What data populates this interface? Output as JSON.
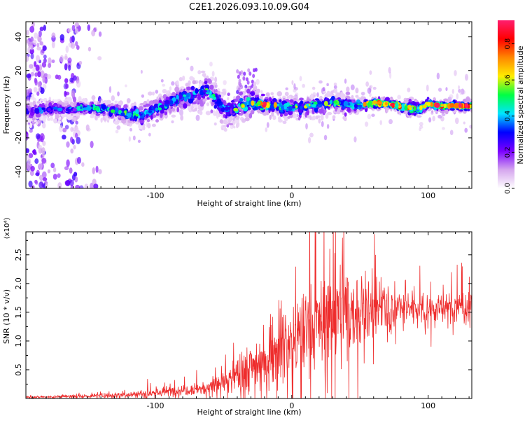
{
  "title": "C2E1.2026.093.10.09.G04",
  "chart_data": [
    {
      "type": "heatmap",
      "title": "C2E1.2026.093.10.09.G04",
      "xlabel": "Height of straight line (km)",
      "ylabel": "Frequency (Hz)",
      "xlim": [
        -195,
        132
      ],
      "ylim": [
        -50,
        49
      ],
      "xticks": [
        -100,
        0,
        100
      ],
      "xtick_labels": [
        "-100",
        "0",
        "100"
      ],
      "yticks": [
        -40,
        -20,
        0,
        20,
        40
      ],
      "ytick_labels": [
        "-40",
        "-20",
        "0",
        "20",
        "40"
      ],
      "colorbar": {
        "label": "Normalized spectral amplitude",
        "range": [
          0.0,
          0.93
        ],
        "ticks": [
          0.0,
          0.2,
          0.4,
          0.6,
          0.8
        ],
        "tick_labels": [
          "0.0",
          "0.2",
          "0.4",
          "0.6",
          "0.8"
        ],
        "colors": [
          "#ffffff",
          "#d5a6ee",
          "#7a00ff",
          "#0000ff",
          "#00e5ff",
          "#00ff44",
          "#ffee00",
          "#ff8800",
          "#ff0000",
          "#ff1e6e"
        ]
      },
      "ridge": {
        "x": [
          -190,
          -175,
          -160,
          -150,
          -140,
          -130,
          -120,
          -110,
          -100,
          -90,
          -80,
          -70,
          -62,
          -55,
          -48,
          -40,
          -30,
          -20,
          -10,
          0,
          10,
          20,
          30,
          40,
          50,
          55,
          60,
          70,
          80,
          90,
          95,
          100,
          110,
          120,
          130
        ],
        "y": [
          -4,
          -3,
          -3,
          -2,
          -3,
          -4,
          -6,
          -7,
          -3,
          1,
          4,
          6,
          8,
          3,
          -4,
          -2,
          1,
          0,
          -1,
          -2,
          -1,
          0,
          1,
          0,
          -1,
          0,
          1,
          0,
          -1,
          -3,
          -2,
          0,
          -1,
          -1,
          -1
        ],
        "width": [
          4,
          4,
          3,
          3,
          3,
          4,
          4,
          5,
          5,
          5,
          5,
          6,
          7,
          7,
          7,
          6,
          5,
          4,
          4,
          4,
          4,
          4,
          4,
          4,
          3,
          2,
          2,
          2,
          2,
          3,
          3,
          2,
          2,
          2,
          2
        ],
        "peak": [
          0.35,
          0.35,
          0.4,
          0.5,
          0.55,
          0.5,
          0.55,
          0.5,
          0.55,
          0.55,
          0.55,
          0.55,
          0.5,
          0.5,
          0.5,
          0.55,
          0.7,
          0.85,
          0.6,
          0.55,
          0.6,
          0.55,
          0.6,
          0.6,
          0.65,
          0.9,
          0.93,
          0.93,
          0.93,
          0.85,
          0.75,
          0.9,
          0.93,
          0.93,
          0.93
        ]
      },
      "noise_columns": [
        {
          "x0": -195,
          "x1": -180,
          "density": 0.55
        },
        {
          "x0": -166,
          "x1": -156,
          "density": 0.45
        },
        {
          "x0": -180,
          "x1": -166,
          "density": 0.12
        },
        {
          "x0": -156,
          "x1": -140,
          "density": 0.08
        }
      ]
    },
    {
      "type": "line",
      "series_name": "SNR",
      "color": "#ee2c2c",
      "xlabel": "Height of straight line (km)",
      "ylabel": "SNR (10 * v/v)",
      "scale_label": "(x10⁴)",
      "xlim": [
        -195,
        132
      ],
      "ylim": [
        0,
        2.9
      ],
      "xticks": [
        -100,
        0,
        100
      ],
      "xtick_labels": [
        "-100",
        "0",
        "100"
      ],
      "yticks": [
        0.5,
        1.0,
        1.5,
        2.0,
        2.5
      ],
      "ytick_labels": [
        "0.5",
        "1.0",
        "1.5",
        "2.0",
        "2.5"
      ],
      "envelope": {
        "x": [
          -195,
          -150,
          -120,
          -100,
          -80,
          -60,
          -50,
          -40,
          -30,
          -20,
          -10,
          0,
          10,
          20,
          30,
          40,
          50,
          60,
          70,
          80,
          90,
          100,
          110,
          120,
          132
        ],
        "mean": [
          0.02,
          0.04,
          0.07,
          0.1,
          0.15,
          0.2,
          0.3,
          0.4,
          0.55,
          0.7,
          0.9,
          1.0,
          1.15,
          1.3,
          1.45,
          1.55,
          1.5,
          1.55,
          1.6,
          1.55,
          1.6,
          1.55,
          1.55,
          1.6,
          1.6
        ],
        "spread": [
          0.01,
          0.03,
          0.05,
          0.07,
          0.1,
          0.12,
          0.2,
          0.3,
          0.4,
          0.5,
          0.55,
          0.6,
          0.7,
          0.75,
          0.8,
          0.8,
          0.7,
          0.45,
          0.35,
          0.3,
          0.3,
          0.25,
          0.2,
          0.25,
          0.3
        ]
      }
    }
  ]
}
